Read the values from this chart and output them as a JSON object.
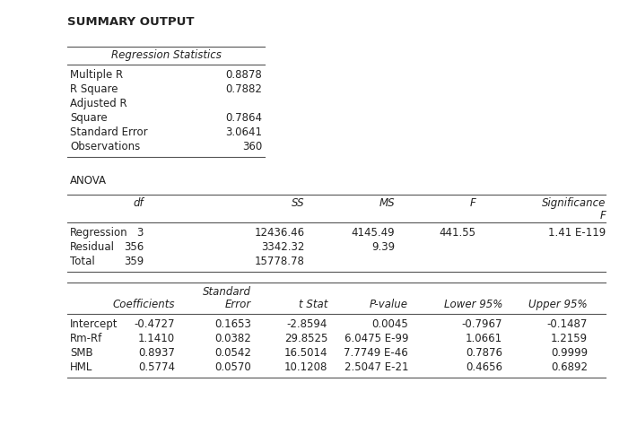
{
  "title": "SUMMARY OUTPUT",
  "background_color": "#ffffff",
  "reg_stats_header": "Regression Statistics",
  "reg_stats_labels": [
    "Multiple R",
    "R Square",
    "Adjusted R",
    "Square",
    "Standard Error",
    "Observations"
  ],
  "reg_stats_values": [
    "0.8878",
    "0.7882",
    "",
    "0.7864",
    "3.0641",
    "360"
  ],
  "anova_label": "ANOVA",
  "anova_col_headers": [
    "df",
    "SS",
    "MS",
    "F",
    "Significance",
    "F"
  ],
  "anova_rows": [
    [
      "Regression",
      "3",
      "12436.46",
      "4145.49",
      "441.55",
      "1.41 E-119"
    ],
    [
      "Residual",
      "356",
      "3342.32",
      "9.39",
      "",
      ""
    ],
    [
      "Total",
      "359",
      "15778.78",
      "",
      "",
      ""
    ]
  ],
  "coeff_col_headers_r1": [
    "",
    "Standard",
    "",
    "",
    "",
    ""
  ],
  "coeff_col_headers_r2": [
    "Coefficients",
    "Error",
    "t Stat",
    "P-value",
    "Lower 95%",
    "Upper 95%"
  ],
  "coeff_rows": [
    [
      "Intercept",
      "-0.4727",
      "0.1653",
      "-2.8594",
      "0.0045",
      "-0.7967",
      "-0.1487"
    ],
    [
      "Rm-Rf",
      "1.1410",
      "0.0382",
      "29.8525",
      "6.0475 E-99",
      "1.0661",
      "1.2159"
    ],
    [
      "SMB",
      "0.8937",
      "0.0542",
      "16.5014",
      "7.7749 E-46",
      "0.7876",
      "0.9999"
    ],
    [
      "HML",
      "0.5774",
      "0.0570",
      "10.1208",
      "2.5047 E-21",
      "0.4656",
      "0.6892"
    ]
  ]
}
